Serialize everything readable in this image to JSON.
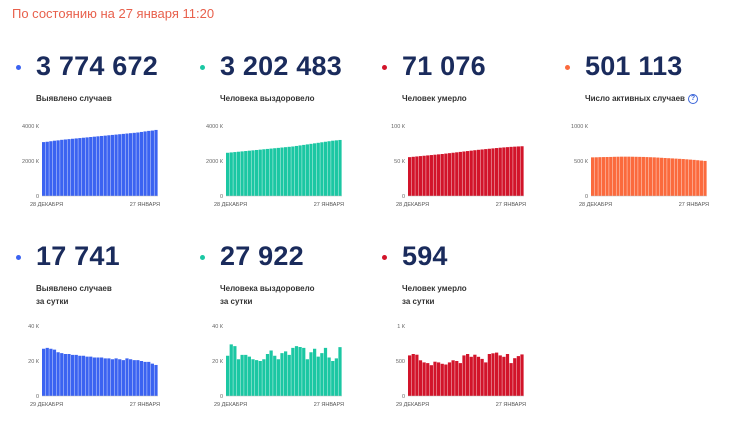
{
  "timestamp": "По состоянию на 27 января 11:20",
  "panels": [
    {
      "value": "3 774 672",
      "label": "Выявлено случаев",
      "label2": "",
      "info": "",
      "color": "#3b63f1",
      "dot": "#3b63f1"
    },
    {
      "value": "3 202 483",
      "label": "Человека выздоровело",
      "label2": "",
      "info": "",
      "color": "#1bc7a3",
      "dot": "#1bc7a3"
    },
    {
      "value": "71 076",
      "label": "Человек умерло",
      "label2": "",
      "info": "",
      "color": "#d2142a",
      "dot": "#d2142a"
    },
    {
      "value": "501 113",
      "label": "Число активных случаев",
      "label2": "",
      "info": "?",
      "color": "#fb6a3d",
      "dot": "#fb6a3d"
    },
    {
      "value": "17 741",
      "label": "Выявлено случаев",
      "label2": "за сутки",
      "info": "",
      "color": "#3b63f1",
      "dot": "#3b63f1"
    },
    {
      "value": "27 922",
      "label": "Человека выздоровело",
      "label2": "за сутки",
      "info": "",
      "color": "#1bc7a3",
      "dot": "#1bc7a3"
    },
    {
      "value": "594",
      "label": "Человек умерло",
      "label2": "за сутки",
      "info": "",
      "color": "#d2142a",
      "dot": "#d2142a"
    }
  ],
  "chart_data": [
    {
      "type": "bar",
      "title": "Выявлено случаев",
      "x_start": "28 ДЕКАБРЯ",
      "x_end": "27 ЯНВАРЯ",
      "ylim": [
        0,
        4000000
      ],
      "yticks": [
        {
          "v": 4000000,
          "t": "4000 К"
        },
        {
          "v": 2000000,
          "t": "2000 К"
        },
        {
          "v": 0,
          "t": "0"
        }
      ],
      "values": [
        3080000,
        3100000,
        3130000,
        3160000,
        3180000,
        3210000,
        3230000,
        3250000,
        3270000,
        3290000,
        3310000,
        3330000,
        3350000,
        3370000,
        3390000,
        3410000,
        3430000,
        3450000,
        3470000,
        3490000,
        3510000,
        3530000,
        3550000,
        3570000,
        3590000,
        3610000,
        3630000,
        3660000,
        3690000,
        3720000,
        3740000,
        3774672
      ]
    },
    {
      "type": "bar",
      "title": "Человека выздоровело",
      "x_start": "28 ДЕКАБРЯ",
      "x_end": "27 ЯНВАРЯ",
      "ylim": [
        0,
        4000000
      ],
      "yticks": [
        {
          "v": 4000000,
          "t": "4000 К"
        },
        {
          "v": 2000000,
          "t": "2000 К"
        },
        {
          "v": 0,
          "t": "0"
        }
      ],
      "values": [
        2470000,
        2490000,
        2510000,
        2530000,
        2550000,
        2570000,
        2590000,
        2610000,
        2630000,
        2650000,
        2670000,
        2690000,
        2710000,
        2730000,
        2750000,
        2770000,
        2790000,
        2810000,
        2830000,
        2860000,
        2890000,
        2920000,
        2950000,
        2980000,
        3010000,
        3040000,
        3070000,
        3100000,
        3130000,
        3160000,
        3180000,
        3202483
      ]
    },
    {
      "type": "bar",
      "title": "Человек умерло",
      "x_start": "28 ДЕКАБРЯ",
      "x_end": "27 ЯНВАРЯ",
      "ylim": [
        0,
        100000
      ],
      "yticks": [
        {
          "v": 100000,
          "t": "100 К"
        },
        {
          "v": 50000,
          "t": "50 К"
        },
        {
          "v": 0,
          "t": "0"
        }
      ],
      "values": [
        55500,
        56000,
        56500,
        57000,
        57500,
        58000,
        58500,
        59000,
        59500,
        60000,
        60600,
        61200,
        61800,
        62400,
        63000,
        63600,
        64200,
        64800,
        65400,
        66000,
        66500,
        67000,
        67500,
        68000,
        68500,
        69000,
        69400,
        69800,
        70200,
        70500,
        70800,
        71076
      ]
    },
    {
      "type": "bar",
      "title": "Число активных случаев",
      "x_start": "28 ДЕКАБРЯ",
      "x_end": "27 ЯНВАРЯ",
      "ylim": [
        0,
        1000000
      ],
      "yticks": [
        {
          "v": 1000000,
          "t": "1000 К"
        },
        {
          "v": 500000,
          "t": "500 К"
        },
        {
          "v": 0,
          "t": "0"
        }
      ],
      "values": [
        552000,
        553000,
        555000,
        556000,
        557000,
        558000,
        560000,
        561000,
        562000,
        562000,
        562000,
        561000,
        560000,
        559000,
        558000,
        556000,
        554000,
        552000,
        549000,
        546000,
        543000,
        540000,
        537000,
        534000,
        531000,
        528000,
        524000,
        520000,
        516000,
        511000,
        506000,
        501113
      ]
    },
    {
      "type": "bar",
      "title": "Выявлено случаев за сутки",
      "x_start": "29 ДЕКАБРЯ",
      "x_end": "27 ЯНВАРЯ",
      "ylim": [
        0,
        40000
      ],
      "yticks": [
        {
          "v": 40000,
          "t": "40 К"
        },
        {
          "v": 20000,
          "t": "20 К"
        },
        {
          "v": 0,
          "t": "0"
        }
      ],
      "values": [
        27000,
        27500,
        27000,
        26500,
        25000,
        24500,
        24000,
        24000,
        23500,
        23500,
        23000,
        23000,
        22500,
        22500,
        22000,
        22000,
        22000,
        21500,
        21500,
        21000,
        21500,
        21000,
        20500,
        21500,
        21000,
        20500,
        20500,
        20000,
        19500,
        19500,
        18500,
        17741
      ]
    },
    {
      "type": "bar",
      "title": "Человека выздоровело за сутки",
      "x_start": "29 ДЕКАБРЯ",
      "x_end": "27 ЯНВАРЯ",
      "ylim": [
        0,
        40000
      ],
      "yticks": [
        {
          "v": 40000,
          "t": "40 К"
        },
        {
          "v": 20000,
          "t": "20 К"
        },
        {
          "v": 0,
          "t": "0"
        }
      ],
      "values": [
        23000,
        29500,
        28500,
        21000,
        23500,
        23500,
        22500,
        21000,
        20500,
        20000,
        21000,
        24000,
        26000,
        23000,
        21000,
        24500,
        25500,
        23500,
        27500,
        28500,
        28000,
        27500,
        21000,
        25000,
        27000,
        22500,
        24500,
        27500,
        22000,
        20000,
        21500,
        27922
      ]
    },
    {
      "type": "bar",
      "title": "Человек умерло за сутки",
      "x_start": "29 ДЕКАБРЯ",
      "x_end": "27 ЯНВАРЯ",
      "ylim": [
        0,
        1000
      ],
      "yticks": [
        {
          "v": 1000,
          "t": "1 К"
        },
        {
          "v": 500,
          "t": "500"
        },
        {
          "v": 0,
          "t": "0"
        }
      ],
      "values": [
        580,
        600,
        590,
        510,
        480,
        470,
        440,
        490,
        480,
        460,
        450,
        480,
        510,
        500,
        470,
        580,
        600,
        560,
        590,
        560,
        530,
        480,
        600,
        610,
        620,
        580,
        560,
        600,
        470,
        540,
        570,
        594
      ]
    }
  ]
}
